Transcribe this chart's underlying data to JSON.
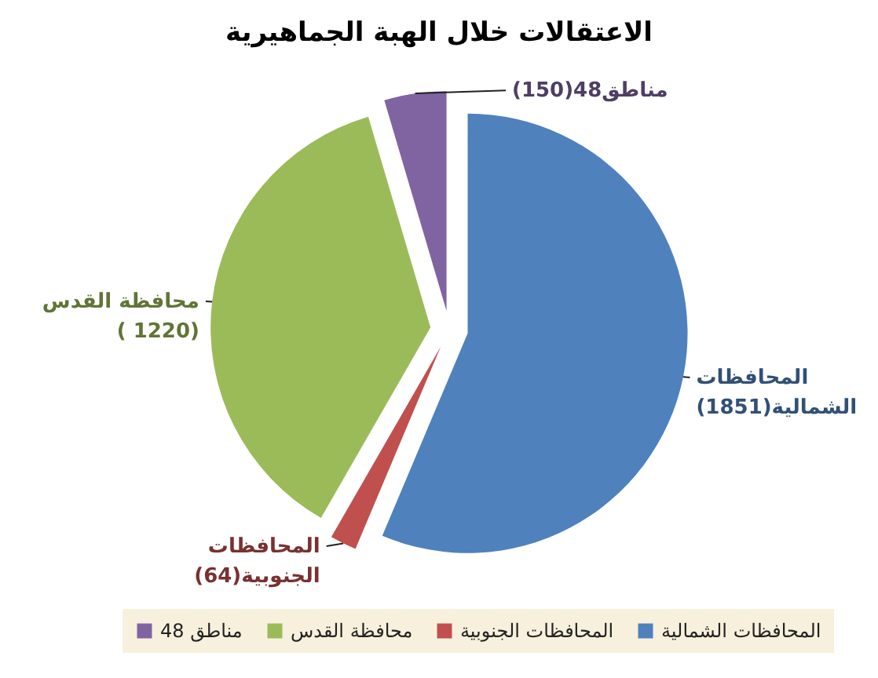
{
  "chart_data": {
    "type": "pie",
    "title": "الاعتقالات خلال الهبة الجماهيرية",
    "categories": [
      "المحافظات الشمالية",
      "المحافظات الجنوبية",
      "محافظة القدس",
      "مناطق 48"
    ],
    "values": [
      1851,
      64,
      1220,
      150
    ],
    "colors": [
      "#4f81bd",
      "#c0504d",
      "#9bbb59",
      "#8064a2"
    ],
    "value_labels": [
      "المحافظات\nالشمالية(1851)",
      "المحافظات\nالجنوبية(64)",
      "محافظة القدس\n( 1220)",
      "مناطق48(150)"
    ],
    "legend": "bottom"
  }
}
